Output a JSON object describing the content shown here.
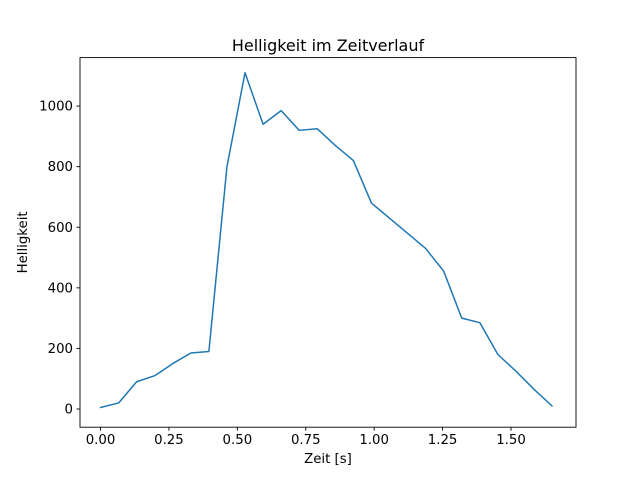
{
  "figure": {
    "title": "Helligkeit im Zeitverlauf",
    "xlabel": "Zeit [s]",
    "ylabel": "Helligkeit"
  },
  "chart_data": {
    "type": "line",
    "title": "Helligkeit im Zeitverlauf",
    "xlabel": "Zeit [s]",
    "ylabel": "Helligkeit",
    "series": [
      {
        "name": "Helligkeit",
        "color": "#1f77b4",
        "x": [
          0.0,
          0.066,
          0.132,
          0.198,
          0.264,
          0.33,
          0.396,
          0.462,
          0.528,
          0.594,
          0.66,
          0.726,
          0.792,
          0.858,
          0.924,
          0.99,
          1.056,
          1.122,
          1.188,
          1.254,
          1.32,
          1.386,
          1.452,
          1.518,
          1.584,
          1.65
        ],
        "y": [
          5,
          20,
          90,
          110,
          150,
          185,
          190,
          800,
          1110,
          940,
          985,
          920,
          925,
          870,
          820,
          680,
          630,
          580,
          530,
          455,
          300,
          285,
          180,
          125,
          65,
          10
        ]
      }
    ],
    "xlim": [
      -0.075,
      1.7375
    ],
    "ylim": [
      -60,
      1160
    ],
    "xticks": {
      "values": [
        0,
        0.25,
        0.5,
        0.75,
        1.0,
        1.25,
        1.5
      ],
      "labels": [
        "0.00",
        "0.25",
        "0.50",
        "0.75",
        "1.00",
        "1.25",
        "1.50"
      ]
    },
    "yticks": {
      "values": [
        0,
        200,
        400,
        600,
        800,
        1000
      ],
      "labels": [
        "0",
        "200",
        "400",
        "600",
        "800",
        "1000"
      ]
    },
    "grid": false,
    "legend": null,
    "line_width": 1.5
  },
  "colors": {
    "background": "#ffffff",
    "spine": "#000000",
    "text": "#000000",
    "line": "#1f77b4"
  }
}
